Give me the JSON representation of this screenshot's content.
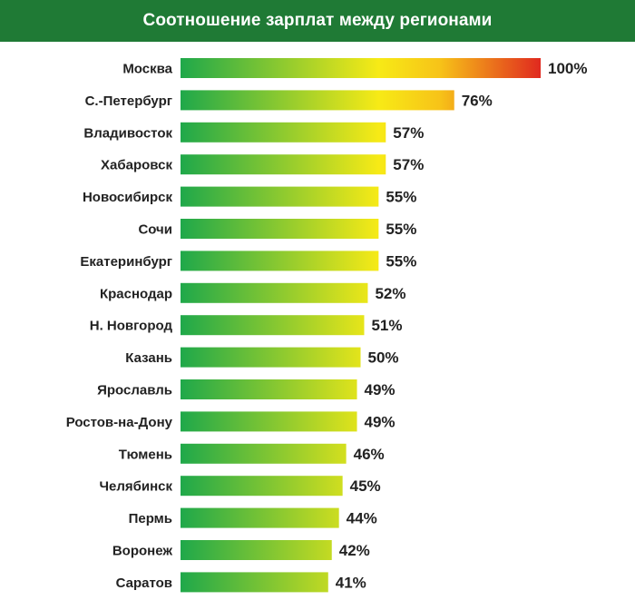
{
  "chart_data": {
    "type": "bar",
    "orientation": "horizontal",
    "title": "Соотношение зарплат между регионами",
    "categories": [
      "Москва",
      "С.-Петербург",
      "Владивосток",
      "Хабаровск",
      "Новосибирск",
      "Сочи",
      "Екатеринбург",
      "Краснодар",
      "Н. Новгород",
      "Казань",
      "Ярославль",
      "Ростов-на-Дону",
      "Тюмень",
      "Челябинск",
      "Пермь",
      "Воронеж",
      "Саратов"
    ],
    "values": [
      100,
      76,
      57,
      57,
      55,
      55,
      55,
      52,
      51,
      50,
      49,
      49,
      46,
      45,
      44,
      42,
      41
    ],
    "value_labels": [
      "100%",
      "76%",
      "57%",
      "57%",
      "55%",
      "55%",
      "55%",
      "52%",
      "51%",
      "50%",
      "49%",
      "49%",
      "46%",
      "45%",
      "44%",
      "42%",
      "41%"
    ],
    "xlim": [
      0,
      100
    ],
    "grid": false,
    "legend": "none",
    "colors": {
      "header_bg": "#1f7a35",
      "gradient_start": "#1fa84a",
      "gradient_mid": "#f7ea16",
      "gradient_end": "#e0291f",
      "text": "#222222"
    }
  }
}
